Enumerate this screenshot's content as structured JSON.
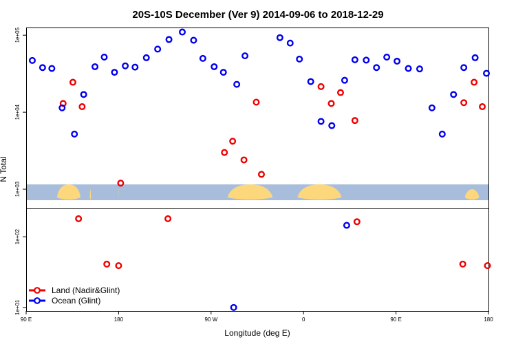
{
  "chart_data": {
    "type": "scatter",
    "title": "20S-10S December (Ver 9)   2014-09-06 to 2018-12-29",
    "xlabel": "Longitude (deg E)",
    "ylabel": "N Total",
    "ylabel_lower": "",
    "x_ticks": [
      {
        "value": 90,
        "label": "90 E"
      },
      {
        "value": 180,
        "label": "180"
      },
      {
        "value": 270,
        "label": "90 W"
      },
      {
        "value": 360,
        "label": "0"
      },
      {
        "value": 450,
        "label": "90 E"
      },
      {
        "value": 540,
        "label": "180"
      }
    ],
    "xlim": [
      90,
      540
    ],
    "upper_panel": {
      "scale": "log",
      "ylim_log10": [
        2.75,
        5.1
      ],
      "y_ticks": [
        {
          "value": 1000,
          "label": "1e+03"
        },
        {
          "value": 10000,
          "label": "1e+04"
        },
        {
          "value": 100000,
          "label": "1e+05"
        }
      ]
    },
    "lower_panel": {
      "scale": "log",
      "ylim_log10": [
        0.95,
        2.4
      ],
      "y_ticks": [
        {
          "value": 10,
          "label": "1e+01"
        },
        {
          "value": 100,
          "label": "1e+02"
        }
      ]
    },
    "series": [
      {
        "name": "Land (Nadir&Glint)",
        "color": "#ee0000",
        "upper": [
          {
            "x": 126,
            "y": 13000
          },
          {
            "x": 135.5,
            "y": 24500
          },
          {
            "x": 144.5,
            "y": 11800
          },
          {
            "x": 182,
            "y": 1200
          },
          {
            "x": 283,
            "y": 3000
          },
          {
            "x": 291,
            "y": 4200
          },
          {
            "x": 302,
            "y": 2400
          },
          {
            "x": 314,
            "y": 13500
          },
          {
            "x": 319,
            "y": 1560
          },
          {
            "x": 377,
            "y": 21500
          },
          {
            "x": 387,
            "y": 13000
          },
          {
            "x": 396,
            "y": 18000
          },
          {
            "x": 410,
            "y": 7800
          },
          {
            "x": 516,
            "y": 13300
          },
          {
            "x": 526,
            "y": 24500
          },
          {
            "x": 534,
            "y": 11800
          }
        ],
        "lower": [
          {
            "x": 168.5,
            "y": 41
          },
          {
            "x": 180,
            "y": 39
          },
          {
            "x": 141,
            "y": 180
          },
          {
            "x": 228,
            "y": 180
          },
          {
            "x": 412,
            "y": 163
          },
          {
            "x": 515,
            "y": 41
          },
          {
            "x": 539,
            "y": 39
          }
        ]
      },
      {
        "name": "Ocean (Glint)",
        "color": "#0000ee",
        "upper": [
          {
            "x": 96,
            "y": 47000
          },
          {
            "x": 106,
            "y": 38000
          },
          {
            "x": 115,
            "y": 37000
          },
          {
            "x": 125,
            "y": 11400
          },
          {
            "x": 137,
            "y": 5200
          },
          {
            "x": 146,
            "y": 17000
          },
          {
            "x": 157,
            "y": 39000
          },
          {
            "x": 166,
            "y": 52000
          },
          {
            "x": 176,
            "y": 33000
          },
          {
            "x": 186.5,
            "y": 40000
          },
          {
            "x": 196,
            "y": 38500
          },
          {
            "x": 207,
            "y": 51000
          },
          {
            "x": 218,
            "y": 66000
          },
          {
            "x": 229,
            "y": 88000
          },
          {
            "x": 242,
            "y": 110000
          },
          {
            "x": 253,
            "y": 86000
          },
          {
            "x": 262,
            "y": 50000
          },
          {
            "x": 273,
            "y": 39000
          },
          {
            "x": 282,
            "y": 33000
          },
          {
            "x": 295,
            "y": 23000
          },
          {
            "x": 303,
            "y": 54000
          },
          {
            "x": 337,
            "y": 93000
          },
          {
            "x": 347,
            "y": 79000
          },
          {
            "x": 356,
            "y": 49000
          },
          {
            "x": 367,
            "y": 25000
          },
          {
            "x": 377,
            "y": 7600
          },
          {
            "x": 387.5,
            "y": 6700
          },
          {
            "x": 400,
            "y": 26000
          },
          {
            "x": 410,
            "y": 48000
          },
          {
            "x": 421,
            "y": 47500
          },
          {
            "x": 431,
            "y": 38000
          },
          {
            "x": 441,
            "y": 52000
          },
          {
            "x": 451,
            "y": 46000
          },
          {
            "x": 462,
            "y": 37000
          },
          {
            "x": 473,
            "y": 36500
          },
          {
            "x": 485,
            "y": 11400
          },
          {
            "x": 495,
            "y": 5200
          },
          {
            "x": 506,
            "y": 17000
          },
          {
            "x": 516,
            "y": 38000
          },
          {
            "x": 527,
            "y": 51000
          },
          {
            "x": 538,
            "y": 32000
          }
        ],
        "lower": [
          {
            "x": 402,
            "y": 145
          },
          {
            "x": 292,
            "y": 10
          }
        ]
      }
    ],
    "legend": {
      "placement": "bottom-left"
    },
    "map_strip": {
      "ocean_color": "#a8bddb",
      "land_color": "#fdd77c",
      "land_longitudes": [
        [
          120,
          143
        ],
        [
          152,
          153
        ],
        [
          180,
          180
        ],
        [
          286,
          330
        ],
        [
          354,
          397
        ],
        [
          517,
          531
        ]
      ]
    }
  }
}
